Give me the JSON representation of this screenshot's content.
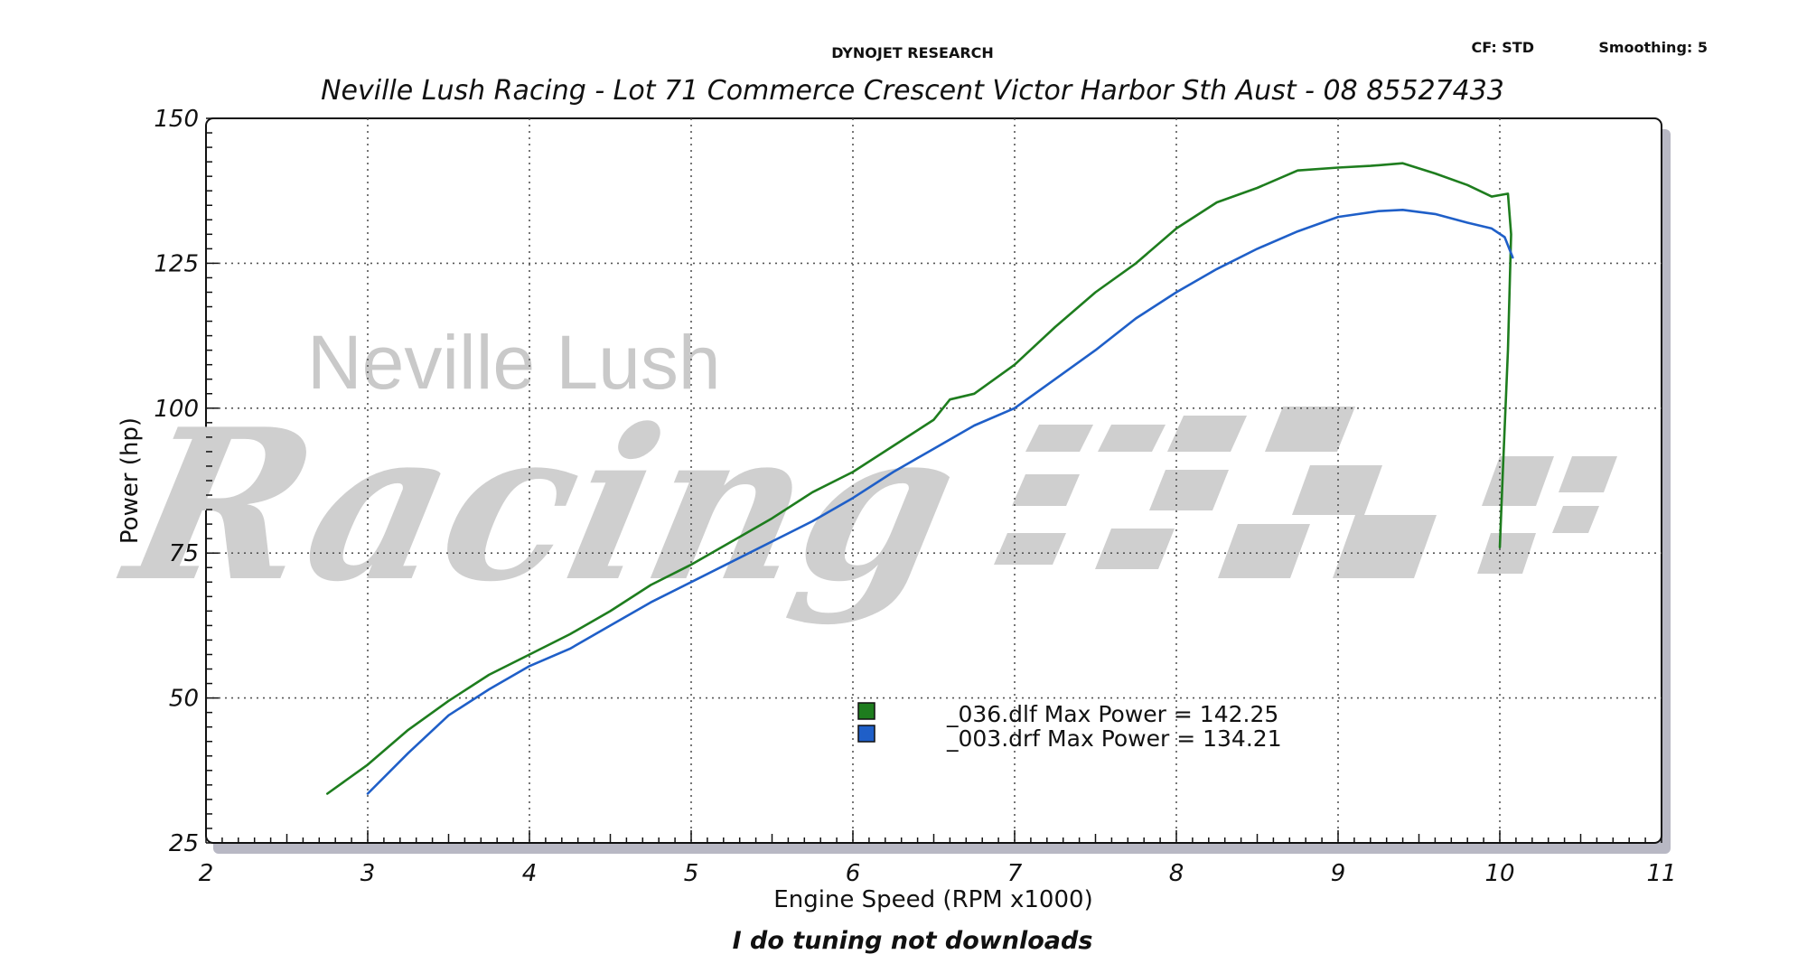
{
  "header": {
    "brand": "DYNOJET RESEARCH",
    "cf": "CF: STD",
    "smoothing": "Smoothing: 5",
    "title": "Neville Lush Racing  - Lot 71 Commerce Crescent  Victor Harbor Sth Aust  - 08 85527433"
  },
  "watermark": {
    "line1": "Neville Lush",
    "line2": "Racing"
  },
  "footer": {
    "tagline": "I do tuning not downloads"
  },
  "colors": {
    "green_run": "#1e7d1e",
    "blue_run": "#1f5fc8",
    "grid": "#555555",
    "background": "#ffffff",
    "shadow": "#b8b8c4"
  },
  "chart_data": {
    "type": "line",
    "title": "Neville Lush Racing  - Lot 71 Commerce Crescent  Victor Harbor Sth Aust  - 08 85527433",
    "xlabel": "Engine Speed (RPM x1000)",
    "ylabel": "Power (hp)",
    "xlim": [
      2,
      11
    ],
    "ylim": [
      25,
      150
    ],
    "xticks": [
      "2",
      "3",
      "4",
      "5",
      "6",
      "7",
      "8",
      "9",
      "10",
      "11"
    ],
    "yticks": [
      "25",
      "50",
      "75",
      "100",
      "125",
      "150"
    ],
    "grid": true,
    "legend_position": "center-bottom",
    "series": [
      {
        "name": "_036.dlf Max Power = 142.25",
        "color": "#1e7d1e",
        "points": [
          [
            2.75,
            33.5
          ],
          [
            3.0,
            38.5
          ],
          [
            3.25,
            44.5
          ],
          [
            3.5,
            49.5
          ],
          [
            3.75,
            54.0
          ],
          [
            4.0,
            57.5
          ],
          [
            4.25,
            61.0
          ],
          [
            4.5,
            65.0
          ],
          [
            4.75,
            69.5
          ],
          [
            5.0,
            73.0
          ],
          [
            5.25,
            77.0
          ],
          [
            5.5,
            81.0
          ],
          [
            5.75,
            85.5
          ],
          [
            6.0,
            89.0
          ],
          [
            6.25,
            93.5
          ],
          [
            6.5,
            98.0
          ],
          [
            6.6,
            101.5
          ],
          [
            6.75,
            102.5
          ],
          [
            7.0,
            107.5
          ],
          [
            7.25,
            114.0
          ],
          [
            7.5,
            120.0
          ],
          [
            7.75,
            125.0
          ],
          [
            8.0,
            131.0
          ],
          [
            8.25,
            135.5
          ],
          [
            8.5,
            138.0
          ],
          [
            8.75,
            141.0
          ],
          [
            9.0,
            141.5
          ],
          [
            9.2,
            141.8
          ],
          [
            9.4,
            142.25
          ],
          [
            9.6,
            140.5
          ],
          [
            9.8,
            138.5
          ],
          [
            9.95,
            136.5
          ],
          [
            10.05,
            137.0
          ],
          [
            10.07,
            130.0
          ],
          [
            10.05,
            110.0
          ],
          [
            10.02,
            90.0
          ],
          [
            10.0,
            76.0
          ]
        ]
      },
      {
        "name": "_003.drf Max Power = 134.21",
        "color": "#1f5fc8",
        "points": [
          [
            3.0,
            33.5
          ],
          [
            3.25,
            40.5
          ],
          [
            3.5,
            47.0
          ],
          [
            3.75,
            51.5
          ],
          [
            4.0,
            55.5
          ],
          [
            4.25,
            58.5
          ],
          [
            4.5,
            62.5
          ],
          [
            4.75,
            66.5
          ],
          [
            5.0,
            70.0
          ],
          [
            5.25,
            73.5
          ],
          [
            5.5,
            77.0
          ],
          [
            5.75,
            80.5
          ],
          [
            6.0,
            84.5
          ],
          [
            6.25,
            89.0
          ],
          [
            6.5,
            93.0
          ],
          [
            6.75,
            97.0
          ],
          [
            7.0,
            100.0
          ],
          [
            7.25,
            105.0
          ],
          [
            7.5,
            110.0
          ],
          [
            7.75,
            115.5
          ],
          [
            8.0,
            120.0
          ],
          [
            8.25,
            124.0
          ],
          [
            8.5,
            127.5
          ],
          [
            8.75,
            130.5
          ],
          [
            9.0,
            133.0
          ],
          [
            9.25,
            134.0
          ],
          [
            9.4,
            134.21
          ],
          [
            9.6,
            133.5
          ],
          [
            9.8,
            132.0
          ],
          [
            9.95,
            131.0
          ],
          [
            10.03,
            129.5
          ],
          [
            10.08,
            126.0
          ]
        ]
      }
    ]
  }
}
